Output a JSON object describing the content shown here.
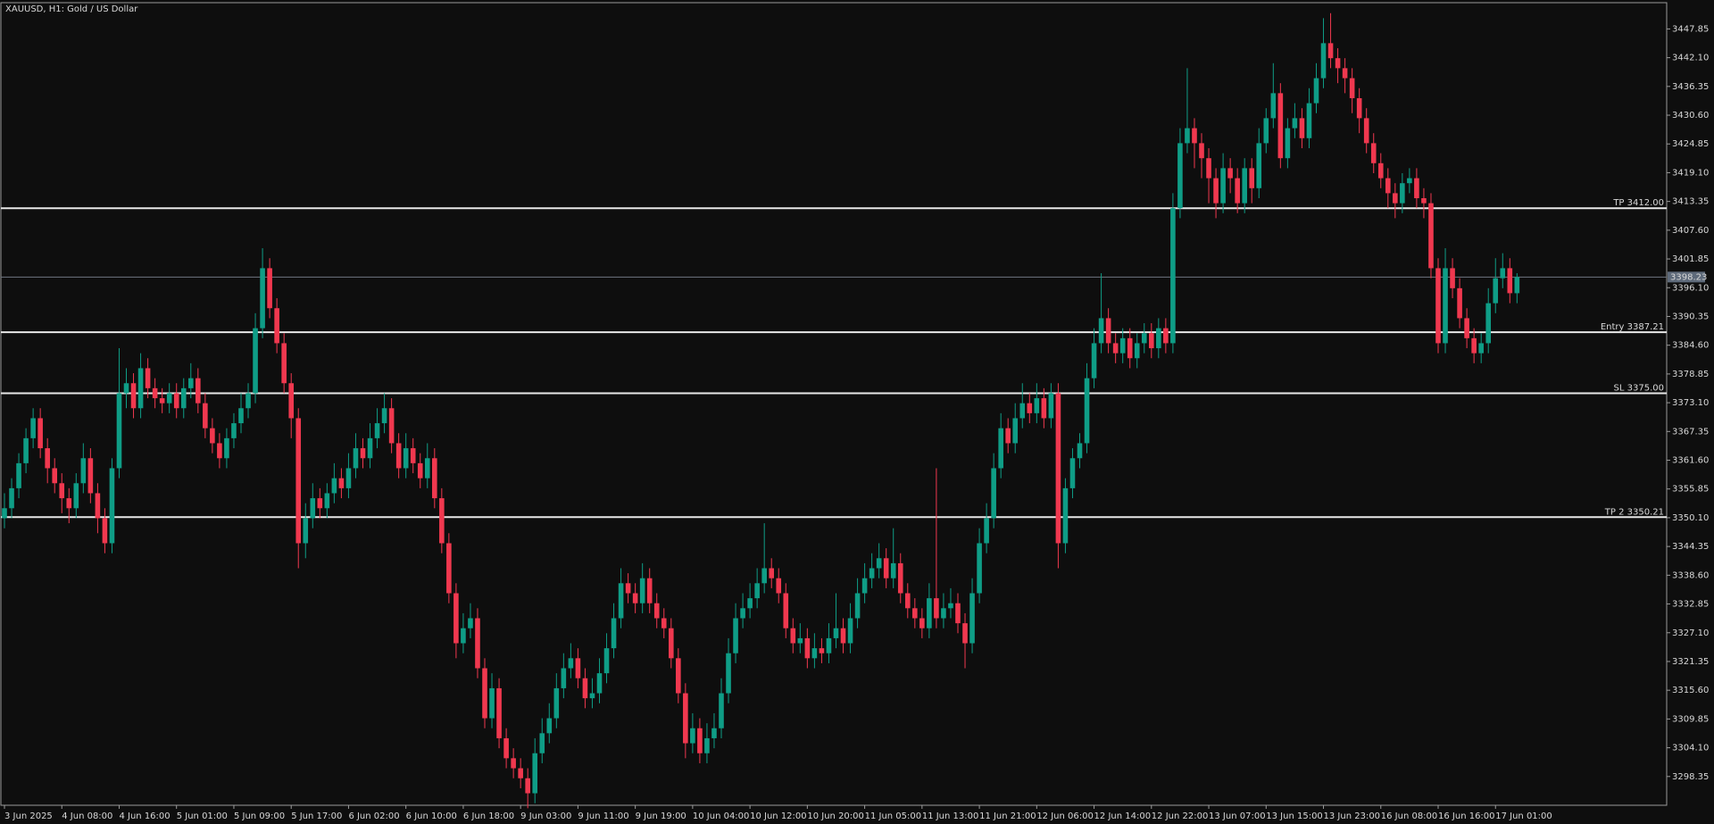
{
  "chart_data": {
    "type": "candlestick",
    "title": "XAUUSD, H1:  Gold / US Dollar",
    "up_color": "#0f9d86",
    "down_color": "#f0384f",
    "ylim": [
      3292.6,
      3453.1
    ],
    "yticks": [
      3447.85,
      {
        "value": 3442.1,
        "label": "3442.10"
      },
      3436.35,
      {
        "value": 3430.6,
        "label": "3430.60"
      },
      3424.85,
      {
        "value": 3419.1,
        "label": "3419.10"
      },
      3413.35,
      {
        "value": 3407.6,
        "label": "3407.60"
      },
      3401.85,
      {
        "value": 3396.1,
        "label": "3396.10"
      },
      3390.35,
      {
        "value": 3384.6,
        "label": "3384.60"
      },
      3378.85,
      {
        "value": 3373.1,
        "label": "3373.10"
      },
      3367.35,
      {
        "value": 3361.6,
        "label": "3361.60"
      },
      3355.85,
      {
        "value": 3350.1,
        "label": "3350.10"
      },
      3344.35,
      {
        "value": 3338.6,
        "label": "3338.60"
      },
      3332.85,
      {
        "value": 3327.1,
        "label": "3327.10"
      },
      3321.35,
      {
        "value": 3315.6,
        "label": "3315.60"
      },
      3309.85,
      {
        "value": 3304.1,
        "label": "3304.10"
      },
      3298.35
    ],
    "current_price": 3398.23,
    "levels": [
      {
        "value": 3412,
        "label": "TP 3412.00"
      },
      {
        "value": 3387.21,
        "label": "Entry 3387.21"
      },
      {
        "value": 3375,
        "label": "SL 3375.00"
      },
      {
        "value": 3350.21,
        "label": "TP 2 3350.21"
      }
    ],
    "categories": [
      "3 Jun 2025",
      null,
      null,
      null,
      null,
      null,
      null,
      null,
      "4 Jun 08:00",
      null,
      null,
      null,
      null,
      null,
      null,
      null,
      "4 Jun 16:00",
      null,
      null,
      null,
      null,
      null,
      null,
      null,
      "5 Jun 01:00",
      null,
      null,
      null,
      null,
      null,
      null,
      null,
      "5 Jun 09:00",
      null,
      null,
      null,
      null,
      null,
      null,
      null,
      "5 Jun 17:00",
      null,
      null,
      null,
      null,
      null,
      null,
      null,
      "6 Jun 02:00",
      null,
      null,
      null,
      null,
      null,
      null,
      null,
      "6 Jun 10:00",
      null,
      null,
      null,
      null,
      null,
      null,
      null,
      "6 Jun 18:00",
      null,
      null,
      null,
      null,
      null,
      null,
      null,
      "9 Jun 03:00",
      null,
      null,
      null,
      null,
      null,
      null,
      null,
      "9 Jun 11:00",
      null,
      null,
      null,
      null,
      null,
      null,
      null,
      "9 Jun 19:00",
      null,
      null,
      null,
      null,
      null,
      null,
      null,
      "10 Jun 04:00",
      null,
      null,
      null,
      null,
      null,
      null,
      null,
      "10 Jun 12:00",
      null,
      null,
      null,
      null,
      null,
      null,
      null,
      "10 Jun 20:00",
      null,
      null,
      null,
      null,
      null,
      null,
      null,
      "11 Jun 05:00",
      null,
      null,
      null,
      null,
      null,
      null,
      null,
      "11 Jun 13:00",
      null,
      null,
      null,
      null,
      null,
      null,
      null,
      "11 Jun 21:00",
      null,
      null,
      null,
      null,
      null,
      null,
      null,
      "12 Jun 06:00",
      null,
      null,
      null,
      null,
      null,
      null,
      null,
      "12 Jun 14:00",
      null,
      null,
      null,
      null,
      null,
      null,
      null,
      "12 Jun 22:00",
      null,
      null,
      null,
      null,
      null,
      null,
      null,
      "13 Jun 07:00",
      null,
      null,
      null,
      null,
      null,
      null,
      null,
      "13 Jun 15:00",
      null,
      null,
      null,
      null,
      null,
      null,
      null,
      "13 Jun 23:00",
      null,
      null,
      null,
      null,
      null,
      null,
      null,
      "16 Jun 08:00",
      null,
      null,
      null,
      null,
      null,
      null,
      null,
      "16 Jun 16:00",
      null,
      null,
      null,
      null,
      null,
      null,
      null,
      "17 Jun 01:00",
      null,
      null,
      null
    ],
    "candles": [
      [
        3350,
        3355,
        3348,
        3352
      ],
      [
        3352,
        3358,
        3350,
        3356
      ],
      [
        3356,
        3363,
        3354,
        3361
      ],
      [
        3361,
        3368,
        3359,
        3366
      ],
      [
        3366,
        3372,
        3364,
        3370
      ],
      [
        3370,
        3372,
        3362,
        3364
      ],
      [
        3364,
        3366,
        3357,
        3360
      ],
      [
        3360,
        3362,
        3355,
        3357
      ],
      [
        3357,
        3359,
        3351,
        3354
      ],
      [
        3354,
        3356,
        3349,
        3352
      ],
      [
        3352,
        3359,
        3350,
        3357
      ],
      [
        3357,
        3365,
        3355,
        3362
      ],
      [
        3362,
        3364,
        3353,
        3355
      ],
      [
        3355,
        3357,
        3347,
        3350
      ],
      [
        3350,
        3352,
        3343,
        3345
      ],
      [
        3345,
        3362,
        3343,
        3360
      ],
      [
        3360,
        3384,
        3358,
        3375
      ],
      [
        3375,
        3380,
        3372,
        3377
      ],
      [
        3377,
        3379,
        3370,
        3372
      ],
      [
        3372,
        3383,
        3370,
        3380
      ],
      [
        3380,
        3382,
        3374,
        3376
      ],
      [
        3376,
        3378,
        3372,
        3374
      ],
      [
        3374,
        3376,
        3371,
        3373
      ],
      [
        3373,
        3377,
        3371,
        3375
      ],
      [
        3375,
        3377,
        3370,
        3372
      ],
      [
        3372,
        3378,
        3370,
        3376
      ],
      [
        3376,
        3381,
        3374,
        3378
      ],
      [
        3378,
        3380,
        3371,
        3373
      ],
      [
        3373,
        3375,
        3366,
        3368
      ],
      [
        3368,
        3370,
        3363,
        3365
      ],
      [
        3365,
        3367,
        3360,
        3362
      ],
      [
        3362,
        3368,
        3360,
        3366
      ],
      [
        3366,
        3371,
        3364,
        3369
      ],
      [
        3369,
        3375,
        3367,
        3372
      ],
      [
        3372,
        3377,
        3370,
        3375
      ],
      [
        3375,
        3391,
        3373,
        3388
      ],
      [
        3388,
        3404,
        3386,
        3400
      ],
      [
        3400,
        3402,
        3390,
        3392
      ],
      [
        3392,
        3394,
        3383,
        3385
      ],
      [
        3385,
        3387,
        3375,
        3377
      ],
      [
        3377,
        3379,
        3366,
        3370
      ],
      [
        3370,
        3372,
        3340,
        3345
      ],
      [
        3345,
        3353,
        3342,
        3350
      ],
      [
        3350,
        3357,
        3348,
        3354
      ],
      [
        3354,
        3356,
        3350,
        3352
      ],
      [
        3352,
        3357,
        3350,
        3355
      ],
      [
        3355,
        3361,
        3353,
        3358
      ],
      [
        3358,
        3360,
        3354,
        3356
      ],
      [
        3356,
        3363,
        3354,
        3360
      ],
      [
        3360,
        3367,
        3358,
        3364
      ],
      [
        3364,
        3366,
        3360,
        3362
      ],
      [
        3362,
        3369,
        3360,
        3366
      ],
      [
        3366,
        3372,
        3364,
        3369
      ],
      [
        3369,
        3375,
        3367,
        3372
      ],
      [
        3372,
        3374,
        3363,
        3365
      ],
      [
        3365,
        3367,
        3358,
        3360
      ],
      [
        3360,
        3367,
        3358,
        3364
      ],
      [
        3364,
        3366,
        3359,
        3361
      ],
      [
        3361,
        3363,
        3356,
        3358
      ],
      [
        3358,
        3365,
        3356,
        3362
      ],
      [
        3362,
        3364,
        3352,
        3354
      ],
      [
        3354,
        3356,
        3343,
        3345
      ],
      [
        3345,
        3347,
        3333,
        3335
      ],
      [
        3335,
        3337,
        3322,
        3325
      ],
      [
        3325,
        3331,
        3323,
        3328
      ],
      [
        3328,
        3333,
        3326,
        3330
      ],
      [
        3330,
        3332,
        3318,
        3320
      ],
      [
        3320,
        3322,
        3308,
        3310
      ],
      [
        3310,
        3319,
        3308,
        3316
      ],
      [
        3316,
        3318,
        3304,
        3306
      ],
      [
        3306,
        3308,
        3300,
        3302
      ],
      [
        3302,
        3304,
        3298,
        3300
      ],
      [
        3300,
        3302,
        3296,
        3298
      ],
      [
        3298,
        3300,
        3292,
        3295
      ],
      [
        3295,
        3306,
        3293,
        3303
      ],
      [
        3303,
        3310,
        3301,
        3307
      ],
      [
        3307,
        3313,
        3305,
        3310
      ],
      [
        3310,
        3319,
        3308,
        3316
      ],
      [
        3316,
        3323,
        3314,
        3320
      ],
      [
        3320,
        3325,
        3318,
        3322
      ],
      [
        3322,
        3324,
        3316,
        3318
      ],
      [
        3318,
        3320,
        3312,
        3314
      ],
      [
        3314,
        3318,
        3312,
        3315
      ],
      [
        3315,
        3322,
        3313,
        3319
      ],
      [
        3319,
        3327,
        3317,
        3324
      ],
      [
        3324,
        3333,
        3322,
        3330
      ],
      [
        3330,
        3340,
        3328,
        3337
      ],
      [
        3337,
        3339,
        3333,
        3335
      ],
      [
        3335,
        3337,
        3331,
        3333
      ],
      [
        3333,
        3341,
        3331,
        3338
      ],
      [
        3338,
        3340,
        3331,
        3333
      ],
      [
        3333,
        3335,
        3328,
        3330
      ],
      [
        3330,
        3332,
        3326,
        3328
      ],
      [
        3328,
        3330,
        3320,
        3322
      ],
      [
        3322,
        3324,
        3313,
        3315
      ],
      [
        3315,
        3317,
        3302,
        3305
      ],
      [
        3305,
        3311,
        3303,
        3308
      ],
      [
        3308,
        3310,
        3301,
        3303
      ],
      [
        3303,
        3309,
        3301,
        3306
      ],
      [
        3306,
        3311,
        3304,
        3308
      ],
      [
        3308,
        3318,
        3306,
        3315
      ],
      [
        3315,
        3326,
        3313,
        3323
      ],
      [
        3323,
        3333,
        3321,
        3330
      ],
      [
        3330,
        3335,
        3328,
        3332
      ],
      [
        3332,
        3337,
        3330,
        3334
      ],
      [
        3334,
        3340,
        3332,
        3337
      ],
      [
        3337,
        3349,
        3335,
        3340
      ],
      [
        3340,
        3342,
        3336,
        3338
      ],
      [
        3338,
        3340,
        3333,
        3335
      ],
      [
        3335,
        3337,
        3326,
        3328
      ],
      [
        3328,
        3330,
        3323,
        3325
      ],
      [
        3325,
        3329,
        3323,
        3326
      ],
      [
        3326,
        3328,
        3320,
        3322
      ],
      [
        3322,
        3327,
        3320,
        3324
      ],
      [
        3324,
        3326,
        3321,
        3323
      ],
      [
        3323,
        3329,
        3321,
        3326
      ],
      [
        3326,
        3335,
        3324,
        3328
      ],
      [
        3328,
        3330,
        3323,
        3325
      ],
      [
        3325,
        3333,
        3323,
        3330
      ],
      [
        3330,
        3338,
        3328,
        3335
      ],
      [
        3335,
        3341,
        3333,
        3338
      ],
      [
        3338,
        3343,
        3336,
        3340
      ],
      [
        3340,
        3345,
        3338,
        3342
      ],
      [
        3342,
        3344,
        3336,
        3338
      ],
      [
        3338,
        3348,
        3336,
        3341
      ],
      [
        3341,
        3343,
        3333,
        3335
      ],
      [
        3335,
        3337,
        3330,
        3332
      ],
      [
        3332,
        3334,
        3328,
        3330
      ],
      [
        3330,
        3332,
        3326,
        3328
      ],
      [
        3328,
        3337,
        3326,
        3334
      ],
      [
        3334,
        3360,
        3328,
        3330
      ],
      [
        3330,
        3335,
        3328,
        3332
      ],
      [
        3332,
        3336,
        3330,
        3333
      ],
      [
        3333,
        3335,
        3327,
        3329
      ],
      [
        3329,
        3331,
        3320,
        3325
      ],
      [
        3325,
        3338,
        3323,
        3335
      ],
      [
        3335,
        3348,
        3333,
        3345
      ],
      [
        3345,
        3353,
        3343,
        3350
      ],
      [
        3350,
        3363,
        3348,
        3360
      ],
      [
        3360,
        3371,
        3358,
        3368
      ],
      [
        3368,
        3370,
        3363,
        3365
      ],
      [
        3365,
        3373,
        3363,
        3370
      ],
      [
        3370,
        3377,
        3368,
        3373
      ],
      [
        3373,
        3375,
        3369,
        3371
      ],
      [
        3371,
        3377,
        3369,
        3374
      ],
      [
        3374,
        3376,
        3368,
        3370
      ],
      [
        3370,
        3377,
        3368,
        3375
      ],
      [
        3375,
        3377,
        3340,
        3345
      ],
      [
        3345,
        3358,
        3343,
        3356
      ],
      [
        3356,
        3364,
        3354,
        3362
      ],
      [
        3362,
        3367,
        3360,
        3365
      ],
      [
        3365,
        3381,
        3363,
        3378
      ],
      [
        3378,
        3388,
        3376,
        3385
      ],
      [
        3385,
        3399,
        3383,
        3390
      ],
      [
        3390,
        3392,
        3383,
        3385
      ],
      [
        3385,
        3387,
        3381,
        3383
      ],
      [
        3383,
        3388,
        3381,
        3386
      ],
      [
        3386,
        3388,
        3380,
        3382
      ],
      [
        3382,
        3387,
        3380,
        3385
      ],
      [
        3385,
        3389,
        3383,
        3387
      ],
      [
        3387,
        3389,
        3382,
        3384
      ],
      [
        3384,
        3390,
        3382,
        3388
      ],
      [
        3388,
        3390,
        3383,
        3385
      ],
      [
        3385,
        3415,
        3383,
        3412
      ],
      [
        3412,
        3428,
        3410,
        3425
      ],
      [
        3425,
        3440,
        3423,
        3428
      ],
      [
        3428,
        3430,
        3420,
        3425
      ],
      [
        3425,
        3427,
        3418,
        3422
      ],
      [
        3422,
        3424,
        3413,
        3418
      ],
      [
        3418,
        3420,
        3410,
        3413
      ],
      [
        3413,
        3423,
        3411,
        3420
      ],
      [
        3420,
        3422,
        3415,
        3418
      ],
      [
        3418,
        3420,
        3411,
        3413
      ],
      [
        3413,
        3422,
        3411,
        3420
      ],
      [
        3420,
        3422,
        3413,
        3416
      ],
      [
        3416,
        3428,
        3414,
        3425
      ],
      [
        3425,
        3432,
        3423,
        3430
      ],
      [
        3430,
        3441,
        3428,
        3435
      ],
      [
        3435,
        3437,
        3420,
        3422
      ],
      [
        3422,
        3430,
        3420,
        3428
      ],
      [
        3428,
        3433,
        3426,
        3430
      ],
      [
        3430,
        3432,
        3424,
        3426
      ],
      [
        3426,
        3436,
        3424,
        3433
      ],
      [
        3433,
        3441,
        3431,
        3438
      ],
      [
        3438,
        3450,
        3436,
        3445
      ],
      [
        3445,
        3451,
        3440,
        3442
      ],
      [
        3442,
        3444,
        3437,
        3440
      ],
      [
        3440,
        3442,
        3435,
        3438
      ],
      [
        3438,
        3440,
        3431,
        3434
      ],
      [
        3434,
        3436,
        3427,
        3430
      ],
      [
        3430,
        3432,
        3423,
        3425
      ],
      [
        3425,
        3427,
        3419,
        3421
      ],
      [
        3421,
        3423,
        3416,
        3418
      ],
      [
        3418,
        3420,
        3412,
        3415
      ],
      [
        3415,
        3417,
        3410,
        3413
      ],
      [
        3413,
        3419,
        3411,
        3417
      ],
      [
        3417,
        3420,
        3415,
        3418
      ],
      [
        3418,
        3420,
        3412,
        3414
      ],
      [
        3414,
        3416,
        3410,
        3413
      ],
      [
        3413,
        3415,
        3398,
        3400
      ],
      [
        3400,
        3402,
        3383,
        3385
      ],
      [
        3385,
        3404,
        3383,
        3400
      ],
      [
        3400,
        3402,
        3394,
        3396
      ],
      [
        3396,
        3398,
        3388,
        3390
      ],
      [
        3390,
        3392,
        3384,
        3386
      ],
      [
        3386,
        3388,
        3381,
        3383
      ],
      [
        3383,
        3387,
        3381,
        3385
      ],
      [
        3385,
        3396,
        3383,
        3393
      ],
      [
        3393,
        3402,
        3391,
        3398
      ],
      [
        3398,
        3403,
        3396,
        3400
      ],
      [
        3400,
        3402,
        3393,
        3395
      ],
      [
        3395,
        3399,
        3393,
        3398.23
      ]
    ]
  }
}
